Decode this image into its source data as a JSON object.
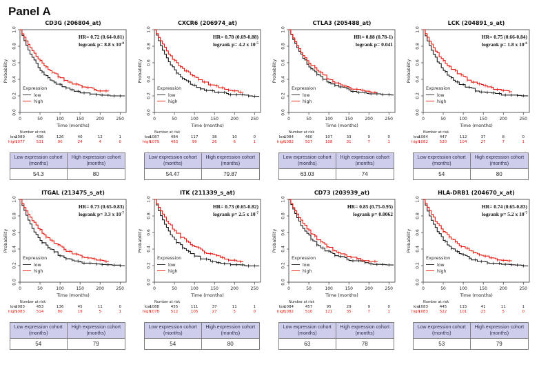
{
  "page": {
    "title": "Panel A"
  },
  "chart_data": {
    "type": "line",
    "subtype": "kaplan-meier-survival",
    "grid": "2 rows x 4 columns",
    "x": {
      "label": "Time (months)",
      "ticks": [
        0,
        50,
        100,
        150,
        200,
        250
      ],
      "range": [
        0,
        265
      ]
    },
    "y": {
      "label": "Probability",
      "ticks": [
        "1.0",
        "0.8",
        "0.6",
        "0.4",
        "0.2",
        "0.0"
      ],
      "range": [
        0,
        1
      ]
    },
    "legend": {
      "title": "Expression",
      "position": "bottom-left",
      "entries": [
        {
          "label": "low",
          "color": "#1a1a1a"
        },
        {
          "label": "high",
          "color": "#e8160c"
        }
      ]
    },
    "risk_table_label": "Number at risk",
    "risk_row_labels": {
      "low": "low",
      "high": "high"
    },
    "cohort_table_headers": [
      "Low expression cohort (months)",
      "High expression cohort (months)"
    ],
    "panels": [
      {
        "title": "CD3G (206804_at)",
        "hr_text": "HR= 0.72 (0.64-0.81)",
        "p_text": "logrank p= 8.8 x 10",
        "p_sup": "-8",
        "risk_low": [
          1089,
          436,
          126,
          40,
          12,
          1
        ],
        "risk_high": [
          1077,
          531,
          90,
          24,
          4,
          0
        ],
        "median_low_months": 54.3,
        "median_high_months": 80,
        "table_low": "54.3",
        "table_high": "80"
      },
      {
        "title": "CXCR6 (206974_at)",
        "hr_text": "HR= 0.78 (0.69-0.88)",
        "p_text": "logrank p= 4.2 x 10",
        "p_sup": "-5",
        "risk_low": [
          1087,
          484,
          117,
          38,
          10,
          0
        ],
        "risk_high": [
          1079,
          483,
          99,
          26,
          6,
          1
        ],
        "median_low_months": 54.47,
        "median_high_months": 79.87,
        "table_low": "54.47",
        "table_high": "79.87"
      },
      {
        "title": "CTLA3 (205488_at)",
        "hr_text": "HR= 0.88 (0.78-1)",
        "p_text": "logrank p= 0.041",
        "p_sup": "",
        "risk_low": [
          1084,
          460,
          107,
          33,
          9,
          0
        ],
        "risk_high": [
          1082,
          507,
          108,
          31,
          7,
          1
        ],
        "median_low_months": 63.03,
        "median_high_months": 74,
        "table_low": "63.03",
        "table_high": "74"
      },
      {
        "title": "LCK (204891_s_at)",
        "hr_text": "HR= 0.75 (0.66-0.84)",
        "p_text": "logrank p= 1.8 x 10",
        "p_sup": "-6",
        "risk_low": [
          1084,
          447,
          112,
          37,
          8,
          0
        ],
        "risk_high": [
          1082,
          520,
          104,
          27,
          7,
          1
        ],
        "median_low_months": 54,
        "median_high_months": 80,
        "table_low": "54",
        "table_high": "80"
      },
      {
        "title": "ITGAL (213475_s_at)",
        "hr_text": "HR= 0.73 (0.65-0.83)",
        "p_text": "logrank p= 3.3 x 10",
        "p_sup": "-7",
        "risk_low": [
          1083,
          453,
          136,
          45,
          11,
          0
        ],
        "risk_high": [
          1083,
          514,
          80,
          19,
          5,
          1
        ],
        "median_low_months": 54,
        "median_high_months": 79,
        "table_low": "54",
        "table_high": "79"
      },
      {
        "title": "ITK (211339_s_at)",
        "hr_text": "HR= 0.73 (0.65-0.82)",
        "p_text": "logrank p= 2.5 x 10",
        "p_sup": "-7",
        "risk_low": [
          1088,
          455,
          111,
          37,
          11,
          1
        ],
        "risk_high": [
          1078,
          512,
          105,
          27,
          5,
          0
        ],
        "median_low_months": 54,
        "median_high_months": 80,
        "table_low": "54",
        "table_high": "80"
      },
      {
        "title": "CD73 (203939_at)",
        "hr_text": "HR= 0.85 (0.75-0.95)",
        "p_text": "logrank p= 0.0062",
        "p_sup": "",
        "risk_low": [
          1084,
          457,
          95,
          29,
          9,
          0
        ],
        "risk_high": [
          1082,
          510,
          121,
          35,
          7,
          1
        ],
        "median_low_months": 63,
        "median_high_months": 78,
        "table_low": "63",
        "table_high": "78"
      },
      {
        "title": "HLA-DRB1 (204670_x_at)",
        "hr_text": "HR= 0.74 (0.65-0.83)",
        "p_text": "logrank p= 5.2 x 10",
        "p_sup": "-7",
        "risk_low": [
          1083,
          445,
          115,
          41,
          11,
          1
        ],
        "risk_high": [
          1083,
          522,
          101,
          23,
          5,
          0
        ],
        "median_low_months": 53,
        "median_high_months": 79,
        "table_low": "53",
        "table_high": "79"
      }
    ],
    "colors": {
      "curve_low": "#1a1a1a",
      "curve_high": "#e8160c",
      "axis": "#333333",
      "table_header_bg": "#cecdeb",
      "table_border": "#7d7d7d"
    }
  }
}
